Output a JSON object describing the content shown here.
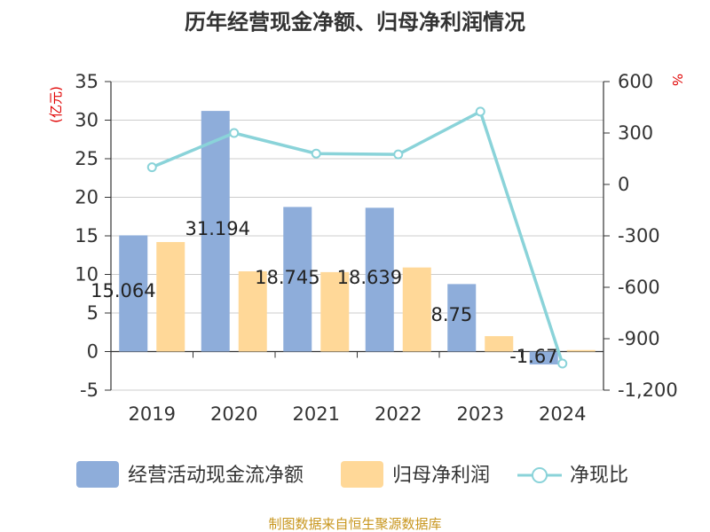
{
  "chart_data": {
    "type": "bar",
    "title": "历年经营现金净额、归母净利润情况",
    "categories": [
      "2019",
      "2020",
      "2021",
      "2022",
      "2023",
      "2024"
    ],
    "series": [
      {
        "name": "经营活动现金流净额",
        "type": "bar",
        "axis": "left",
        "color": "#8EADDA",
        "values": [
          15.064,
          31.194,
          18.745,
          18.639,
          8.75,
          -1.67
        ],
        "labels": [
          "15.064",
          "31.194",
          "18.745",
          "18.639",
          "8.75",
          "-1.67"
        ]
      },
      {
        "name": "归母净利润",
        "type": "bar",
        "axis": "left",
        "color": "#FFD898",
        "values": [
          14.2,
          10.4,
          10.3,
          10.9,
          2.0,
          0.2
        ]
      },
      {
        "name": "净现比",
        "type": "line",
        "axis": "right",
        "color": "#8AD3D9",
        "values": [
          100,
          300,
          180,
          175,
          425,
          -1045
        ]
      }
    ],
    "left_axis": {
      "label": "(亿元)",
      "min": -5,
      "max": 35,
      "ticks": [
        -5,
        0,
        5,
        10,
        15,
        20,
        25,
        30,
        35
      ]
    },
    "right_axis": {
      "label": "%",
      "min": -1200,
      "max": 600,
      "ticks": [
        600,
        300,
        0,
        -300,
        -600,
        -900,
        -1200
      ],
      "tick_labels": [
        "600",
        "300",
        "0",
        "-300",
        "-600",
        "-900",
        "-1,200"
      ]
    },
    "legend_position": "bottom",
    "grid": true
  },
  "source": "制图数据来自恒生聚源数据库"
}
